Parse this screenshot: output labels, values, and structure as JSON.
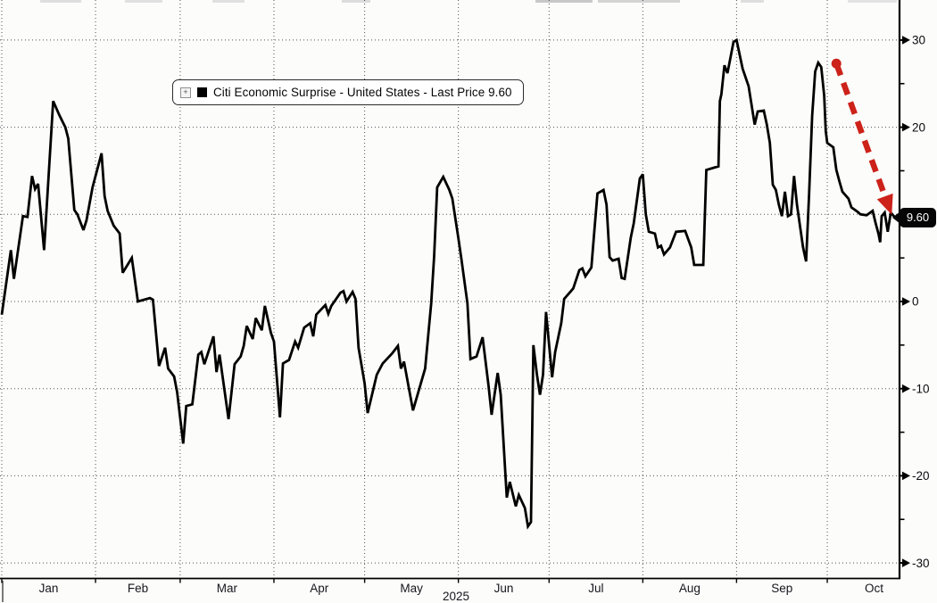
{
  "chart_data": {
    "type": "line",
    "title": "Citi Economic Surprise - United States",
    "legend_label": "Citi Economic Surprise - United States - Last Price 9.60",
    "last_price": 9.6,
    "last_price_label": "9.60",
    "colors": {
      "series": "#000000",
      "annotation": "#cc2219",
      "grid": "#50505a",
      "axis": "#000000",
      "tick_label": "#0b0b10",
      "month_label": "#16161e",
      "background": "#fcfcfa",
      "badge_bg": "#060606",
      "badge_text": "#ffffff"
    },
    "x_axis": {
      "unit": "days since Jan 1 2025",
      "month_labels": [
        "Jan",
        "Feb",
        "Mar",
        "Apr",
        "May",
        "Jun",
        "Jul",
        "Aug",
        "Sep",
        "Oct"
      ],
      "month_start_days": [
        0,
        31,
        59,
        90,
        120,
        151,
        181,
        212,
        243,
        273
      ],
      "month_lengths": [
        31,
        28,
        31,
        30,
        31,
        30,
        31,
        31,
        30,
        31
      ],
      "year_label": "2025",
      "domain_days": [
        0,
        297
      ]
    },
    "y_axis": {
      "major_ticks": [
        30,
        20,
        10,
        0,
        -10,
        -20,
        -30
      ],
      "minor_ticks": [
        25,
        15,
        5,
        -5,
        -15,
        -25
      ],
      "visible_range": [
        -34.6,
        34.6
      ],
      "grid": true,
      "side": "right"
    },
    "series": [
      {
        "name": "Citi Economic Surprise - United States",
        "color": "#000000",
        "points": [
          [
            0,
            -1.5
          ],
          [
            3,
            5.9
          ],
          [
            4,
            2.6
          ],
          [
            7,
            9.8
          ],
          [
            8.5,
            9.7
          ],
          [
            10,
            14.4
          ],
          [
            11,
            12.9
          ],
          [
            12,
            13.5
          ],
          [
            14,
            5.9
          ],
          [
            17,
            23
          ],
          [
            19,
            21.4
          ],
          [
            21,
            20
          ],
          [
            22,
            18.7
          ],
          [
            24,
            10.5
          ],
          [
            25,
            10
          ],
          [
            27,
            8.2
          ],
          [
            28,
            9.3
          ],
          [
            30,
            13.1
          ],
          [
            33,
            17
          ],
          [
            34,
            12.1
          ],
          [
            35,
            10.4
          ],
          [
            37,
            8.7
          ],
          [
            39,
            7.8
          ],
          [
            40,
            3.3
          ],
          [
            43,
            5
          ],
          [
            45,
            0
          ],
          [
            49,
            0.4
          ],
          [
            50,
            0.2
          ],
          [
            52,
            -7.4
          ],
          [
            54,
            -5.3
          ],
          [
            55,
            -7.7
          ],
          [
            57,
            -8.6
          ],
          [
            58,
            -10.4
          ],
          [
            60,
            -16.3
          ],
          [
            61,
            -12
          ],
          [
            63,
            -11.8
          ],
          [
            65,
            -6.1
          ],
          [
            66,
            -5.8
          ],
          [
            67,
            -7.2
          ],
          [
            70,
            -4
          ],
          [
            71,
            -8.1
          ],
          [
            72,
            -6.1
          ],
          [
            75,
            -13.5
          ],
          [
            77,
            -7.2
          ],
          [
            79,
            -6.3
          ],
          [
            80,
            -5.1
          ],
          [
            81,
            -2.8
          ],
          [
            83,
            -4.3
          ],
          [
            84,
            -1.9
          ],
          [
            86,
            -3.3
          ],
          [
            87,
            -0.5
          ],
          [
            89,
            -3.6
          ],
          [
            90,
            -4.6
          ],
          [
            92,
            -13.3
          ],
          [
            93,
            -7.1
          ],
          [
            95,
            -6.7
          ],
          [
            97,
            -4.6
          ],
          [
            98,
            -5.3
          ],
          [
            100,
            -3
          ],
          [
            102,
            -2.5
          ],
          [
            103,
            -4
          ],
          [
            104,
            -1.5
          ],
          [
            107,
            -0.4
          ],
          [
            108,
            -1.4
          ],
          [
            109,
            -0.5
          ],
          [
            112,
            1
          ],
          [
            113,
            1.2
          ],
          [
            114,
            0
          ],
          [
            116,
            1.1
          ],
          [
            117,
            0.3
          ],
          [
            118,
            -5.3
          ],
          [
            120,
            -9.4
          ],
          [
            121,
            -12.8
          ],
          [
            124,
            -8.4
          ],
          [
            126,
            -7.1
          ],
          [
            129,
            -6
          ],
          [
            131,
            -5.1
          ],
          [
            132,
            -7.7
          ],
          [
            133,
            -6.9
          ],
          [
            136,
            -12.5
          ],
          [
            138,
            -10.1
          ],
          [
            140,
            -7.7
          ],
          [
            142,
            -0.2
          ],
          [
            143,
            5.2
          ],
          [
            144,
            13.1
          ],
          [
            146,
            14.3
          ],
          [
            148,
            12.8
          ],
          [
            149,
            11.8
          ],
          [
            151,
            7.3
          ],
          [
            152,
            4.9
          ],
          [
            154,
            -0.2
          ],
          [
            155,
            -6.6
          ],
          [
            157,
            -6.3
          ],
          [
            159,
            -4.1
          ],
          [
            161,
            -9.7
          ],
          [
            162,
            -13
          ],
          [
            164,
            -8.2
          ],
          [
            165,
            -10.7
          ],
          [
            167,
            -22.5
          ],
          [
            168,
            -20.7
          ],
          [
            170,
            -23.5
          ],
          [
            171,
            -22.2
          ],
          [
            173,
            -23.7
          ],
          [
            174,
            -25.8
          ],
          [
            175,
            -25.3
          ],
          [
            175.8,
            -5
          ],
          [
            177,
            -8.4
          ],
          [
            178,
            -10.7
          ],
          [
            179,
            -8.4
          ],
          [
            180,
            -1.2
          ],
          [
            182,
            -8.7
          ],
          [
            183,
            -5.8
          ],
          [
            185,
            -2.5
          ],
          [
            186,
            0.3
          ],
          [
            188,
            1.1
          ],
          [
            189,
            1.5
          ],
          [
            191,
            3.6
          ],
          [
            192,
            3.8
          ],
          [
            193,
            2.9
          ],
          [
            195,
            3.9
          ],
          [
            196,
            8.2
          ],
          [
            197,
            12.4
          ],
          [
            199,
            12.8
          ],
          [
            200,
            11.1
          ],
          [
            201,
            5.1
          ],
          [
            202,
            4.7
          ],
          [
            204,
            4.9
          ],
          [
            205,
            2.7
          ],
          [
            206,
            2.6
          ],
          [
            208,
            7.3
          ],
          [
            209,
            9
          ],
          [
            211,
            14.1
          ],
          [
            212,
            14.6
          ],
          [
            213,
            10
          ],
          [
            214,
            8
          ],
          [
            216,
            7.8
          ],
          [
            217,
            6.2
          ],
          [
            218,
            6.4
          ],
          [
            219,
            5.4
          ],
          [
            221,
            6.2
          ],
          [
            223,
            8
          ],
          [
            226,
            8.1
          ],
          [
            228,
            6.2
          ],
          [
            229,
            4.2
          ],
          [
            232,
            4.2
          ],
          [
            233,
            15.1
          ],
          [
            236,
            15.4
          ],
          [
            237,
            15.5
          ],
          [
            237.5,
            23
          ],
          [
            238,
            23.8
          ],
          [
            239,
            27.1
          ],
          [
            240,
            26.2
          ],
          [
            242,
            29.8
          ],
          [
            243,
            30
          ],
          [
            245,
            26.7
          ],
          [
            247,
            24.7
          ],
          [
            249,
            20.3
          ],
          [
            250,
            21.8
          ],
          [
            252,
            21.9
          ],
          [
            253,
            20.3
          ],
          [
            254,
            18.2
          ],
          [
            255,
            13.4
          ],
          [
            256,
            12.8
          ],
          [
            257,
            11.1
          ],
          [
            258,
            9.8
          ],
          [
            259,
            12.6
          ],
          [
            260,
            9.8
          ],
          [
            261,
            10
          ],
          [
            262,
            14.4
          ],
          [
            263,
            11.1
          ],
          [
            265,
            6.2
          ],
          [
            266,
            4.6
          ],
          [
            267,
            12.4
          ],
          [
            268,
            21.3
          ],
          [
            269,
            26.4
          ],
          [
            270,
            27.4
          ],
          [
            271,
            26.9
          ],
          [
            272,
            23.6
          ],
          [
            272.5,
            19.6
          ],
          [
            273,
            18.2
          ],
          [
            275,
            17.7
          ],
          [
            276,
            15.1
          ],
          [
            277,
            13.8
          ],
          [
            278,
            12.6
          ],
          [
            280,
            11.8
          ],
          [
            281,
            10.8
          ],
          [
            283,
            10.3
          ],
          [
            284,
            10
          ],
          [
            286,
            9.9
          ],
          [
            288,
            10.4
          ],
          [
            289,
            9
          ],
          [
            290,
            7.7
          ],
          [
            290.5,
            6.8
          ],
          [
            291,
            9.8
          ],
          [
            292,
            10.2
          ],
          [
            293,
            8
          ],
          [
            294,
            10.2
          ],
          [
            295,
            9.8
          ],
          [
            296,
            9.6
          ]
        ]
      }
    ],
    "annotation_arrow": {
      "description": "red dashed arrow pointing down-right from the late-September peak toward the last price",
      "color": "#cc2219",
      "from_day": 276,
      "from_value": 27.3,
      "to_day": 293,
      "to_value": 11.2
    }
  }
}
